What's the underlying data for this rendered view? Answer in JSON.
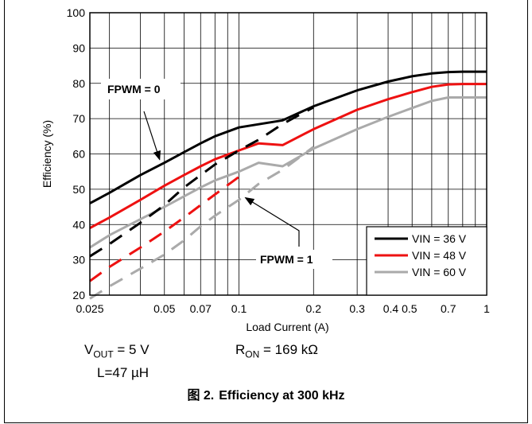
{
  "chart_data": {
    "type": "line",
    "title": "",
    "xlabel": "Load Current (A)",
    "ylabel": "Efficiency (%)",
    "xscale": "log",
    "xlim": [
      0.025,
      1
    ],
    "ylim": [
      20,
      100
    ],
    "grid": true,
    "x_ticks": [
      0.025,
      0.05,
      0.07,
      0.1,
      0.2,
      0.3,
      0.4,
      0.5,
      0.7,
      1
    ],
    "x_tick_labels": [
      "0.025",
      "0.05",
      "0.07",
      "0.1",
      "0.2",
      "0.3",
      "0.4 0.5",
      "",
      "0.7",
      "1"
    ],
    "y_ticks": [
      20,
      30,
      40,
      50,
      60,
      70,
      80,
      90,
      100
    ],
    "y_tick_labels": [
      "20",
      "30",
      "40",
      "50",
      "60",
      "70",
      "80",
      "90",
      "100"
    ],
    "legend_position": "bottom-right",
    "series": [
      {
        "name": "VIN = 36 V",
        "color": "#000000",
        "mode": "FPWM = 0",
        "points": [
          [
            0.025,
            46
          ],
          [
            0.03,
            49
          ],
          [
            0.04,
            54
          ],
          [
            0.05,
            57.5
          ],
          [
            0.06,
            60.5
          ],
          [
            0.07,
            63
          ],
          [
            0.08,
            65
          ],
          [
            0.1,
            67.5
          ],
          [
            0.15,
            69.5
          ],
          [
            0.2,
            73.5
          ],
          [
            0.3,
            78
          ],
          [
            0.4,
            80.5
          ],
          [
            0.5,
            82
          ],
          [
            0.6,
            82.8
          ],
          [
            0.7,
            83.2
          ],
          [
            0.8,
            83.3
          ],
          [
            1,
            83.3
          ]
        ]
      },
      {
        "name": "VIN = 48 V",
        "color": "#ee1111",
        "mode": "FPWM = 0",
        "points": [
          [
            0.025,
            39
          ],
          [
            0.03,
            42
          ],
          [
            0.04,
            47
          ],
          [
            0.05,
            51
          ],
          [
            0.06,
            54
          ],
          [
            0.07,
            56.5
          ],
          [
            0.08,
            58.5
          ],
          [
            0.1,
            61
          ],
          [
            0.12,
            63
          ],
          [
            0.15,
            62.5
          ],
          [
            0.2,
            67
          ],
          [
            0.3,
            72.5
          ],
          [
            0.4,
            75.5
          ],
          [
            0.5,
            77.5
          ],
          [
            0.6,
            79
          ],
          [
            0.7,
            79.7
          ],
          [
            0.8,
            79.8
          ],
          [
            1,
            79.8
          ]
        ]
      },
      {
        "name": "VIN = 60 V",
        "color": "#aaaaaa",
        "mode": "FPWM = 0",
        "points": [
          [
            0.025,
            33.5
          ],
          [
            0.03,
            37
          ],
          [
            0.04,
            41.5
          ],
          [
            0.05,
            45
          ],
          [
            0.06,
            48
          ],
          [
            0.07,
            50.5
          ],
          [
            0.08,
            52.5
          ],
          [
            0.1,
            55
          ],
          [
            0.12,
            57.5
          ],
          [
            0.15,
            56.5
          ],
          [
            0.2,
            61.5
          ],
          [
            0.3,
            67
          ],
          [
            0.4,
            70.5
          ],
          [
            0.5,
            73
          ],
          [
            0.6,
            75
          ],
          [
            0.7,
            76
          ],
          [
            0.8,
            76
          ],
          [
            1,
            76
          ]
        ]
      },
      {
        "name": "VIN = 36 V",
        "color": "#000000",
        "mode": "FPWM = 1",
        "points": [
          [
            0.025,
            31
          ],
          [
            0.03,
            34.5
          ],
          [
            0.04,
            40.5
          ],
          [
            0.05,
            45.5
          ],
          [
            0.06,
            50.5
          ],
          [
            0.07,
            54
          ],
          [
            0.08,
            57
          ],
          [
            0.1,
            61
          ],
          [
            0.12,
            64
          ],
          [
            0.15,
            68.5
          ],
          [
            0.2,
            73.2
          ]
        ]
      },
      {
        "name": "VIN = 48 V",
        "color": "#ee1111",
        "mode": "FPWM = 1",
        "points": [
          [
            0.025,
            24
          ],
          [
            0.03,
            28
          ],
          [
            0.04,
            33.5
          ],
          [
            0.05,
            38
          ],
          [
            0.06,
            42
          ],
          [
            0.07,
            45.5
          ],
          [
            0.08,
            48.5
          ],
          [
            0.1,
            53.5
          ]
        ]
      },
      {
        "name": "VIN = 60 V",
        "color": "#aaaaaa",
        "mode": "FPWM = 1",
        "points": [
          [
            0.025,
            19
          ],
          [
            0.03,
            22.5
          ],
          [
            0.04,
            27.5
          ],
          [
            0.05,
            31.5
          ],
          [
            0.06,
            35.5
          ],
          [
            0.07,
            39.5
          ],
          [
            0.08,
            42.5
          ],
          [
            0.1,
            47
          ],
          [
            0.12,
            51.5
          ],
          [
            0.15,
            55.5
          ],
          [
            0.2,
            62
          ]
        ]
      }
    ],
    "legend": [
      {
        "label": "VIN = 36 V",
        "color": "#000000"
      },
      {
        "label": "VIN = 48 V",
        "color": "#ee1111"
      },
      {
        "label": "VIN = 60 V",
        "color": "#aaaaaa"
      }
    ],
    "annotations": [
      {
        "text": "FPWM = 0",
        "points_to": [
          0.05,
          57.5
        ]
      },
      {
        "text": "FPWM = 1",
        "points_to": [
          0.1,
          48.5
        ]
      }
    ]
  },
  "conditions": {
    "vout_label": "V",
    "vout_sub": "OUT",
    "vout_value": " = 5 V",
    "inductor": "L=47 µH",
    "ron_label": "R",
    "ron_sub": "ON",
    "ron_value": " = 169 kΩ"
  },
  "caption": {
    "figure_number": "图 2.",
    "text": "Efficiency at 300 kHz"
  }
}
